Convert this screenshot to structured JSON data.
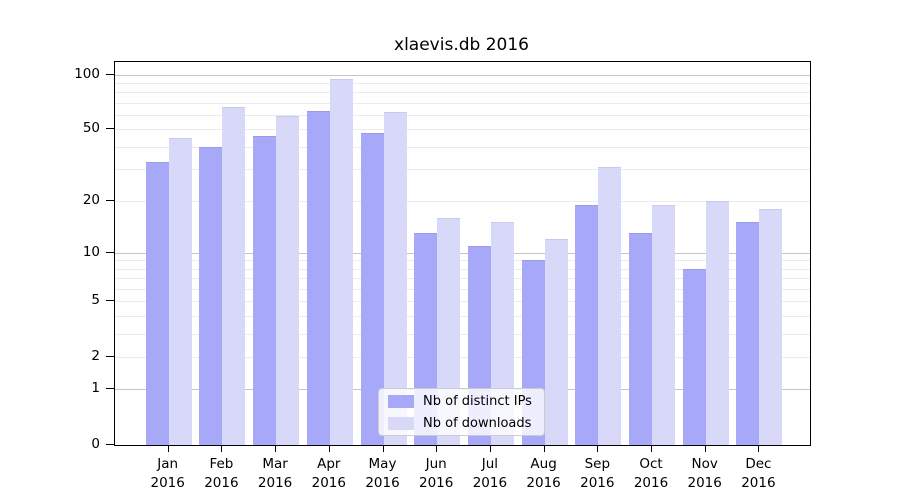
{
  "title": "xlaevis.db 2016",
  "chart_data": {
    "type": "bar",
    "title": "xlaevis.db 2016",
    "categories": [
      "Jan",
      "Feb",
      "Mar",
      "Apr",
      "May",
      "Jun",
      "Jul",
      "Aug",
      "Sep",
      "Oct",
      "Nov",
      "Dec"
    ],
    "category_year": "2016",
    "series": [
      {
        "key": "distinct-ips",
        "name": "Nb of distinct IPs",
        "color": "#a8a8f8",
        "edge_color": "#9a9aee",
        "values": [
          33,
          40,
          46,
          63,
          48,
          13,
          11,
          9,
          19,
          13,
          8,
          15
        ]
      },
      {
        "key": "downloads",
        "name": "Nb of downloads",
        "color": "#d8d8f8",
        "edge_color": "#c9c9f0",
        "values": [
          45,
          66,
          59,
          95,
          62,
          16,
          15,
          12,
          31,
          19,
          20,
          18
        ]
      }
    ],
    "yscale": "log1p",
    "ylim": [
      0,
      117
    ],
    "yticks": [
      0,
      1,
      2,
      5,
      10,
      20,
      50,
      100
    ],
    "major_gridlines": [
      1,
      10,
      100
    ],
    "minor_gridlines": [
      2,
      3,
      4,
      5,
      6,
      7,
      8,
      9,
      20,
      30,
      40,
      50,
      60,
      70,
      80,
      90
    ],
    "grid": true,
    "legend_position": "lower center",
    "colors": {
      "major_grid": "#c6c6c6",
      "minor_grid": "#ebebeb",
      "axis": "#000000",
      "background": "#ffffff"
    }
  },
  "legend": {
    "items": [
      {
        "label": "Nb of distinct IPs"
      },
      {
        "label": "Nb of downloads"
      }
    ]
  }
}
